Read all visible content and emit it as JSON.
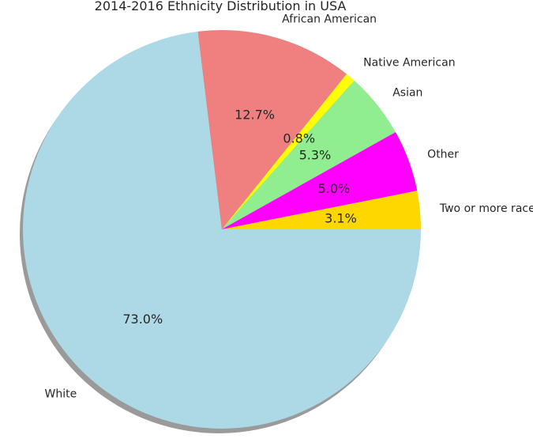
{
  "chart_data": {
    "type": "pie",
    "title": "2014-2016 Ethnicity Distribution in USA",
    "categories": [
      "White",
      "African American",
      "Native American",
      "Asian",
      "Other",
      "Two or more races"
    ],
    "values": [
      73.0,
      12.7,
      0.8,
      5.3,
      5.0,
      3.1
    ],
    "value_labels": [
      "73.0%",
      "12.7%",
      "0.8%",
      "5.3%",
      "5.0%",
      "3.1%"
    ],
    "colors": [
      "#add8e6",
      "#f08080",
      "#ffff00",
      "#90ee90",
      "#ff00ff",
      "#ffd700"
    ],
    "shadow": true
  }
}
